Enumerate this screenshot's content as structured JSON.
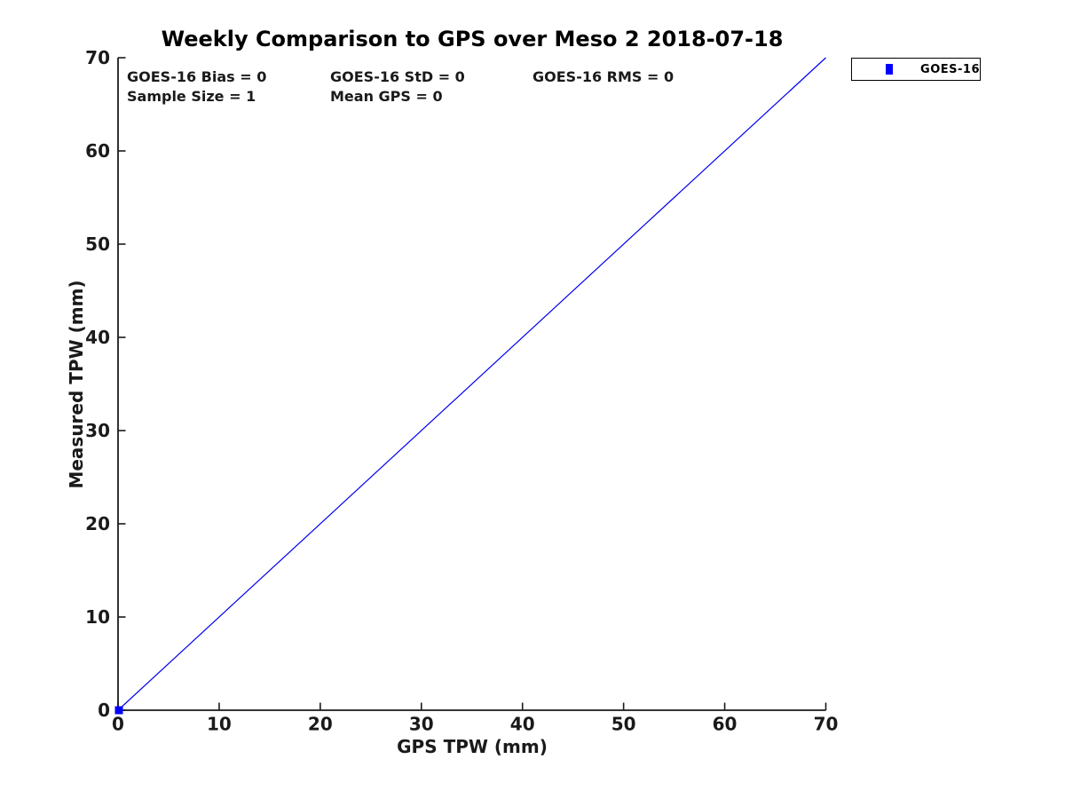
{
  "chart_data": {
    "type": "scatter",
    "title": "Weekly Comparison to GPS over Meso 2 2018-07-18",
    "xlabel": "GPS TPW (mm)",
    "ylabel": "Measured TPW (mm)",
    "xlim": [
      0,
      70
    ],
    "ylim": [
      0,
      70
    ],
    "x_ticks": [
      0,
      10,
      20,
      30,
      40,
      50,
      60,
      70
    ],
    "y_ticks": [
      0,
      10,
      20,
      30,
      40,
      50,
      60,
      70
    ],
    "grid": false,
    "axis_color": "#1a1a1a",
    "series": [
      {
        "name": "identity-line",
        "type": "line",
        "color": "#0000ee",
        "line_width": 1.2,
        "points": [
          [
            0,
            0
          ],
          [
            70,
            70
          ]
        ]
      },
      {
        "name": "GOES-16",
        "type": "scatter",
        "marker": "square",
        "marker_size": 9,
        "color": "#0000ff",
        "points": [
          [
            0,
            0
          ]
        ]
      }
    ],
    "annotations": [
      "GOES-16 Bias = 0",
      "GOES-16 StD = 0",
      "GOES-16 RMS = 0",
      "Sample Size = 1",
      "Mean GPS = 0"
    ],
    "legend": {
      "position": "outside-top-right",
      "labels": [
        "GOES-16"
      ],
      "marker_color": "#0000ff"
    }
  }
}
